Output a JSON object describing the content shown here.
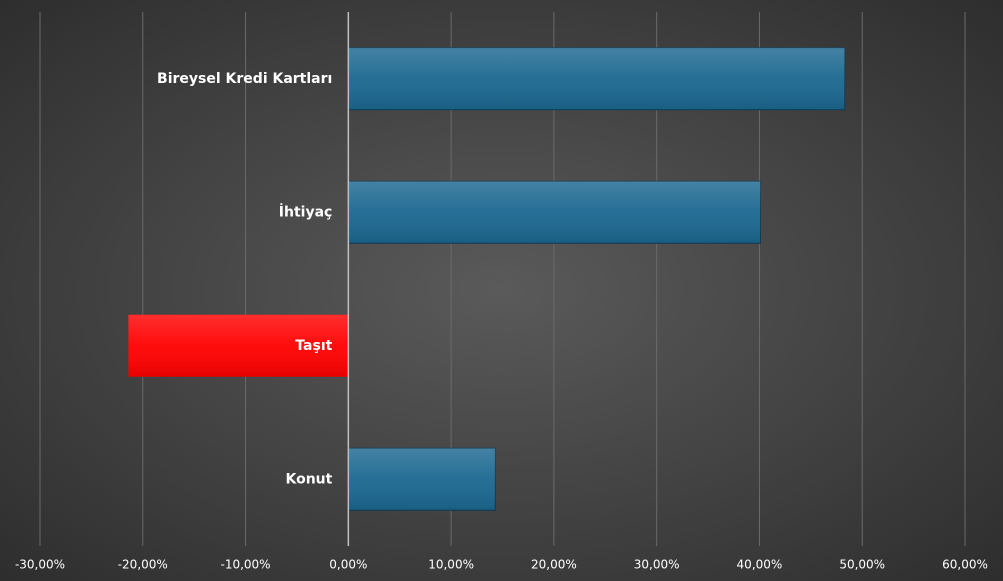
{
  "chart_data": {
    "type": "barh",
    "categories": [
      "Bireysel Kredi Kartları",
      "İhtiyaç",
      "Taşıt",
      "Konut"
    ],
    "values": [
      48.3,
      40.1,
      -21.4,
      14.3
    ],
    "colors": [
      "#1b6790",
      "#1b6790",
      "#ff0000",
      "#1b6790"
    ],
    "xlim": [
      -30,
      60
    ],
    "xticks": [
      {
        "value": -30,
        "label": "-30,00%"
      },
      {
        "value": -20,
        "label": "-20,00%"
      },
      {
        "value": -10,
        "label": "-10,00%"
      },
      {
        "value": 0,
        "label": "0,00%"
      },
      {
        "value": 10,
        "label": "10,00%"
      },
      {
        "value": 20,
        "label": "20,00%"
      },
      {
        "value": 30,
        "label": "30,00%"
      },
      {
        "value": 40,
        "label": "40,00%"
      },
      {
        "value": 50,
        "label": "50,00%"
      },
      {
        "value": 60,
        "label": "60,00%"
      }
    ],
    "grid": true
  }
}
